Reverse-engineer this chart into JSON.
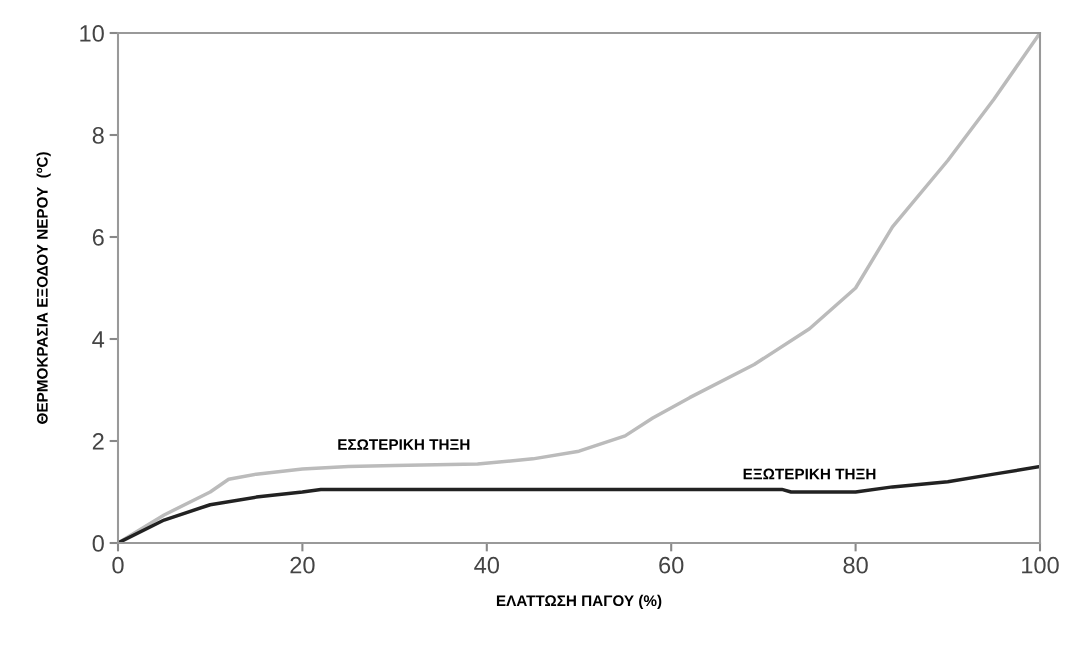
{
  "chart_data": {
    "type": "line",
    "xlabel": "ΕΛΑΤΤΩΣΗ ΠΑΓΟΥ (%)",
    "ylabel": "ΘΕΡΜΟΚΡΑΣΙΑ ΕΞΟΔΟΥ ΝΕΡΟΥ  (ºC)",
    "xlim": [
      0,
      100
    ],
    "xticks": [
      0,
      20,
      40,
      60,
      80,
      100
    ],
    "ylim": [
      0,
      10
    ],
    "yticks": [
      0,
      2,
      4,
      6,
      8,
      10
    ],
    "grid": false,
    "line_style": "solid",
    "series": [
      {
        "name": "ΕΣΩΤΕΡΙΚΗ ΤΗΞΗ",
        "color": "#bbbbbb",
        "x": [
          0,
          5,
          10,
          12,
          15,
          20,
          25,
          30,
          39,
          45,
          50,
          55,
          58,
          62,
          69,
          75,
          80,
          84,
          90,
          95,
          100
        ],
        "values": [
          0,
          0.55,
          1.0,
          1.25,
          1.35,
          1.45,
          1.5,
          1.52,
          1.55,
          1.65,
          1.8,
          2.1,
          2.45,
          2.85,
          3.5,
          4.2,
          5.0,
          6.2,
          7.5,
          8.7,
          10
        ]
      },
      {
        "name": "ΕΞΩΤΕΡΙΚΗ ΤΗΞΗ",
        "color": "#222222",
        "x": [
          0,
          5,
          10,
          15,
          20,
          22,
          40,
          72,
          73,
          80,
          84,
          90,
          95,
          100
        ],
        "values": [
          0,
          0.45,
          0.75,
          0.9,
          1.0,
          1.05,
          1.05,
          1.05,
          1.0,
          1.0,
          1.1,
          1.2,
          1.35,
          1.5
        ]
      }
    ]
  }
}
